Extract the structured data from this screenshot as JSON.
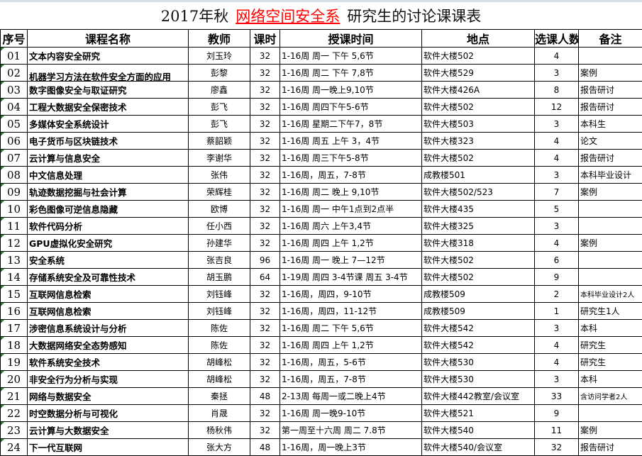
{
  "title": {
    "prefix": "2017年秋",
    "highlight": "网络空间安全系",
    "suffix": "研究生的讨论课课表",
    "highlight_color": "#ff0000"
  },
  "headers": [
    "序号",
    "课程名称",
    "教师",
    "课时",
    "授课时间",
    "地点",
    "选课人数",
    "备注"
  ],
  "rows": [
    {
      "no": "01",
      "name": "文本内容安全研究",
      "teacher": "刘玉玲",
      "hours": "32",
      "time": "1-16周  周一  下午 5,6节",
      "place": "软件大楼502",
      "count": "4",
      "note": ""
    },
    {
      "no": "02",
      "name": "机器学习方法在软件安全方面的应用",
      "teacher": "彭黎",
      "hours": "32",
      "time": "1-16周  周二  下午 7,8节",
      "place": "软件大楼529",
      "count": "3",
      "note": "案例"
    },
    {
      "no": "03",
      "name": "数字图像安全与取证研究",
      "teacher": "廖鑫",
      "hours": "32",
      "time": "1-16周   周一晚上9,10节",
      "place": "软件大楼426A",
      "count": "8",
      "note": "报告研讨"
    },
    {
      "no": "04",
      "name": "工程大数据安全保密技术",
      "teacher": "彭飞",
      "hours": "32",
      "time": "1-16周   周四下午5-6节",
      "place": "软件大楼502",
      "count": "12",
      "note": "报告研讨"
    },
    {
      "no": "05",
      "name": "多媒体安全系统设计",
      "teacher": "彭飞",
      "hours": "32",
      "time": "1-16周   星期二下午7，8节",
      "place": "软件大楼503",
      "count": "3",
      "note": "本科生"
    },
    {
      "no": "06",
      "name": "电子货币与区块链技术",
      "teacher": "蔡韶颖",
      "hours": "32",
      "time": "1-16周  周五  上午  3，4节",
      "place": "软件大楼323",
      "count": "4",
      "note": "论文"
    },
    {
      "no": "07",
      "name": "云计算与信息安全",
      "teacher": "李谢华",
      "hours": "32",
      "time": "1-16周 周三下午5-8节",
      "place": "软件大楼502",
      "count": "4",
      "note": "报告研讨"
    },
    {
      "no": "08",
      "name": "中文信息处理",
      "teacher": "张伟",
      "hours": "32",
      "time": "1-16周，周五，7-8节",
      "place": "成教楼501",
      "count": "3",
      "note": "本科毕业设计"
    },
    {
      "no": "09",
      "name": "轨迹数据挖掘与社会计算",
      "teacher": "荣辉桂",
      "hours": "32",
      "time": "1-16周  周二  晚上 9,10节",
      "place": "软件大楼502/523",
      "count": "7",
      "note": "案例"
    },
    {
      "no": "10",
      "name": "彩色图像可逆信息隐藏",
      "teacher": "欧博",
      "hours": "32",
      "time": "1-16周   周一  中午1点到2点半",
      "place": "软件大楼435",
      "count": "5",
      "note": ""
    },
    {
      "no": "11",
      "name": "软件代码分析",
      "teacher": "任小西",
      "hours": "32",
      "time": "1-16周  周六  上午3,4节",
      "place": "软件大楼325",
      "count": "3",
      "note": ""
    },
    {
      "no": "12",
      "name": "GPU虚拟化安全研究",
      "teacher": "孙建华",
      "hours": "32",
      "time": "1-16周  周四  上午 1,2节",
      "place": "软件大楼318",
      "count": "4",
      "note": "案例"
    },
    {
      "no": "13",
      "name": "安全系统",
      "teacher": "张吉良",
      "hours": "96",
      "time": "1-16周  周一  晚上 7—12节",
      "place": "软件大楼502",
      "count": "6",
      "note": ""
    },
    {
      "no": "14",
      "name": "存储系统安全及可靠性技术",
      "teacher": "胡玉鹏",
      "hours": "64",
      "time": "1-19周   周四 3-4节课 周五 3-4节",
      "place": "软件大楼502",
      "count": "9",
      "note": ""
    },
    {
      "no": "15",
      "name": "互联网信息检索",
      "teacher": "刘钰峰",
      "hours": "32",
      "time": "1-16周，周四，9-10节",
      "place": "成教楼509",
      "count": "2",
      "note": "本科毕业设计2人"
    },
    {
      "no": "16",
      "name": "互联网信息检索",
      "teacher": "刘钰峰",
      "hours": "32",
      "time": "1-16周，周四，11-12节",
      "place": "成教楼509",
      "count": "1",
      "note": "研究生1人"
    },
    {
      "no": "17",
      "name": "涉密信息系统设计与分析",
      "teacher": "陈佐",
      "hours": "32",
      "time": "1-16周  周二  下午 5,6节",
      "place": "软件大楼542",
      "count": "3",
      "note": "本科"
    },
    {
      "no": "18",
      "name": "大数据网络安全态势感知",
      "teacher": "陈佐",
      "hours": "32",
      "time": "1-16周  周四  上午 1,2节",
      "place": "软件大楼542",
      "count": "4",
      "note": "研究生"
    },
    {
      "no": "19",
      "name": "软件系统安全技术",
      "teacher": "胡峰松",
      "hours": "32",
      "time": "1-16周，周五，5-6节",
      "place": "软件大楼530",
      "count": "4",
      "note": "研究生"
    },
    {
      "no": "20",
      "name": "非安全行为分析与实现",
      "teacher": "胡峰松",
      "hours": "32",
      "time": "1-16周，周五，7-8节",
      "place": "软件大楼530",
      "count": "3",
      "note": "本科"
    },
    {
      "no": "21",
      "name": "网络与数据安全",
      "teacher": "秦拯",
      "hours": "48",
      "time": "2-13周 每周一或二晚上4节",
      "place": "软件大楼442教室/会议室",
      "count": "33",
      "note": "含访问学者2人"
    },
    {
      "no": "22",
      "name": "时空数据分析与可视化",
      "teacher": "肖晟",
      "hours": "32",
      "time": "1-16周 周一晚9-10节",
      "place": "软件大楼521",
      "count": "9",
      "note": ""
    },
    {
      "no": "23",
      "name": "云计算与大数据安全",
      "teacher": "杨秋伟",
      "hours": "32",
      "time": "第一周至十六周 周二 7.8节",
      "place": "软件大楼540",
      "count": "11",
      "note": "案例"
    },
    {
      "no": "24",
      "name": "下一代互联网",
      "teacher": "张大方",
      "hours": "48",
      "time": "1-16周，周一晚上3节",
      "place": "软件大楼540/会议室",
      "count": "32",
      "note": "报告研讨"
    }
  ]
}
